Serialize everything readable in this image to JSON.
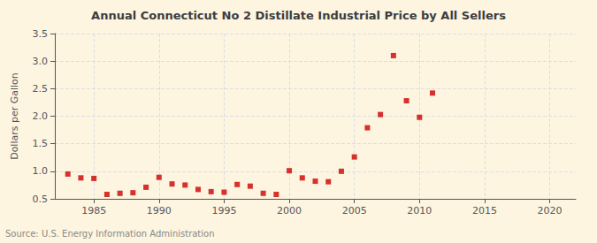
{
  "chart_data": {
    "type": "scatter",
    "title": "Annual Connecticut No 2 Distillate Industrial Price by All Sellers",
    "ylabel": "Dollars per Gallon",
    "source": "Source: U.S. Energy Information Administration",
    "x": [
      1983,
      1984,
      1985,
      1986,
      1987,
      1988,
      1989,
      1990,
      1991,
      1992,
      1993,
      1994,
      1995,
      1996,
      1997,
      1998,
      1999,
      2000,
      2001,
      2002,
      2003,
      2004,
      2005,
      2006,
      2007,
      2008,
      2009,
      2010,
      2011
    ],
    "values": [
      0.95,
      0.88,
      0.87,
      0.58,
      0.6,
      0.61,
      0.71,
      0.89,
      0.77,
      0.75,
      0.67,
      0.63,
      0.62,
      0.76,
      0.73,
      0.6,
      0.58,
      1.01,
      0.88,
      0.82,
      0.81,
      1.0,
      1.26,
      1.79,
      2.03,
      3.1,
      2.28,
      1.98,
      2.42
    ],
    "color": "#cc0000",
    "marker": "square",
    "xlim": [
      1982,
      2022
    ],
    "xticks": [
      1985,
      1990,
      1995,
      2000,
      2005,
      2010,
      2015,
      2020
    ],
    "ylim": [
      0.5,
      3.5
    ],
    "yticks": [
      0.5,
      {
        "value": 1.0,
        "label": "1.0"
      },
      1.5,
      {
        "value": 2.0,
        "label": "2.0"
      },
      2.5,
      {
        "value": 3.0,
        "label": "3.0"
      },
      3.5
    ],
    "grid": true
  }
}
